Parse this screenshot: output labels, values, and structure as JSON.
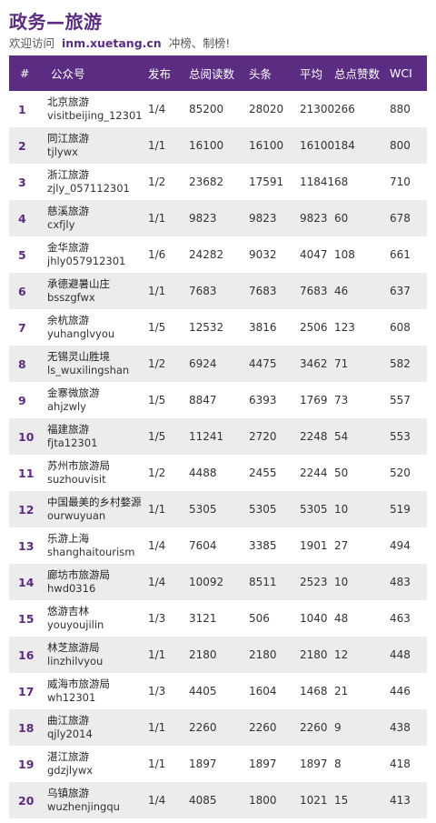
{
  "header": {
    "title": "政务—旅游",
    "welcome": "欢迎访问",
    "site": "inm.xuetang.cn",
    "tagline": "冲榜、制榜!"
  },
  "table": {
    "columns": [
      "#",
      "公众号",
      "发布",
      "总阅读数",
      "头条",
      "平均",
      "总点赞数",
      "WCI"
    ],
    "rows": [
      {
        "rank": "1",
        "name": "北京旅游",
        "id": "visitbeijing_12301",
        "pub": "1/4",
        "total": "85200",
        "head": "28020",
        "avg": "21300",
        "likes": "266",
        "wci": "880"
      },
      {
        "rank": "2",
        "name": "同江旅游",
        "id": "tjlywx",
        "pub": "1/1",
        "total": "16100",
        "head": "16100",
        "avg": "16100",
        "likes": "184",
        "wci": "800"
      },
      {
        "rank": "3",
        "name": "浙江旅游",
        "id": "zjly_057112301",
        "pub": "1/2",
        "total": "23682",
        "head": "17591",
        "avg": "11841",
        "likes": "68",
        "wci": "710"
      },
      {
        "rank": "4",
        "name": "慈溪旅游",
        "id": "cxfjly",
        "pub": "1/1",
        "total": "9823",
        "head": "9823",
        "avg": "9823",
        "likes": "60",
        "wci": "678"
      },
      {
        "rank": "5",
        "name": "金华旅游",
        "id": "jhly057912301",
        "pub": "1/6",
        "total": "24282",
        "head": "9032",
        "avg": "4047",
        "likes": "108",
        "wci": "661"
      },
      {
        "rank": "6",
        "name": "承德避暑山庄",
        "id": "bsszgfwx",
        "pub": "1/1",
        "total": "7683",
        "head": "7683",
        "avg": "7683",
        "likes": "46",
        "wci": "637"
      },
      {
        "rank": "7",
        "name": "余杭旅游",
        "id": "yuhanglvyou",
        "pub": "1/5",
        "total": "12532",
        "head": "3816",
        "avg": "2506",
        "likes": "123",
        "wci": "608"
      },
      {
        "rank": "8",
        "name": "无锡灵山胜境",
        "id": "ls_wuxilingshan",
        "pub": "1/2",
        "total": "6924",
        "head": "4475",
        "avg": "3462",
        "likes": "71",
        "wci": "582"
      },
      {
        "rank": "9",
        "name": "金寨微旅游",
        "id": "ahjzwly",
        "pub": "1/5",
        "total": "8847",
        "head": "6393",
        "avg": "1769",
        "likes": "73",
        "wci": "557"
      },
      {
        "rank": "10",
        "name": "福建旅游",
        "id": "fjta12301",
        "pub": "1/5",
        "total": "11241",
        "head": "2720",
        "avg": "2248",
        "likes": "54",
        "wci": "553"
      },
      {
        "rank": "11",
        "name": "苏州市旅游局",
        "id": "suzhouvisit",
        "pub": "1/2",
        "total": "4488",
        "head": "2455",
        "avg": "2244",
        "likes": "50",
        "wci": "520"
      },
      {
        "rank": "12",
        "name": "中国最美的乡村婺源",
        "id": "ourwuyuan",
        "pub": "1/1",
        "total": "5305",
        "head": "5305",
        "avg": "5305",
        "likes": "10",
        "wci": "519"
      },
      {
        "rank": "13",
        "name": "乐游上海",
        "id": "shanghaitourism",
        "pub": "1/4",
        "total": "7604",
        "head": "3385",
        "avg": "1901",
        "likes": "27",
        "wci": "494"
      },
      {
        "rank": "14",
        "name": "廊坊市旅游局",
        "id": "hwd0316",
        "pub": "1/4",
        "total": "10092",
        "head": "8511",
        "avg": "2523",
        "likes": "10",
        "wci": "483"
      },
      {
        "rank": "15",
        "name": "悠游吉林",
        "id": "youyoujilin",
        "pub": "1/3",
        "total": "3121",
        "head": "506",
        "avg": "1040",
        "likes": "48",
        "wci": "463"
      },
      {
        "rank": "16",
        "name": "林芝旅游局",
        "id": "linzhilvyou",
        "pub": "1/1",
        "total": "2180",
        "head": "2180",
        "avg": "2180",
        "likes": "12",
        "wci": "448"
      },
      {
        "rank": "17",
        "name": "威海市旅游局",
        "id": "wh12301",
        "pub": "1/3",
        "total": "4405",
        "head": "1604",
        "avg": "1468",
        "likes": "21",
        "wci": "446"
      },
      {
        "rank": "18",
        "name": "曲江旅游",
        "id": "qjly2014",
        "pub": "1/1",
        "total": "2260",
        "head": "2260",
        "avg": "2260",
        "likes": "9",
        "wci": "438"
      },
      {
        "rank": "19",
        "name": "湛江旅游",
        "id": "gdzjlywx",
        "pub": "1/1",
        "total": "1897",
        "head": "1897",
        "avg": "1897",
        "likes": "8",
        "wci": "418"
      },
      {
        "rank": "20",
        "name": "乌镇旅游",
        "id": "wuzhenjingqu",
        "pub": "1/4",
        "total": "4085",
        "head": "1800",
        "avg": "1021",
        "likes": "15",
        "wci": "413"
      }
    ]
  },
  "colors": {
    "accent": "#5a2d82",
    "header_text": "#ffffff",
    "row_alt": "#ececec"
  }
}
